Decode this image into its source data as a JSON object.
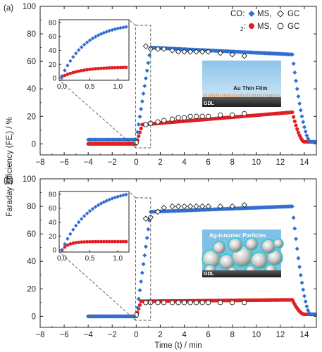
{
  "figure": {
    "ylabel": "Faraday Efficiency (FE",
    "ylabel_sub": "i",
    "ylabel_tail": ") / %",
    "xlabel": "Time (t) / min",
    "legend": {
      "co_label": "CO:",
      "h2_label": "H",
      "h2_sub": "2",
      "h2_colon": ":",
      "ms": "MS,",
      "gc": "GC"
    },
    "colors": {
      "co": "#2f6fd0",
      "h2": "#e01f22",
      "axis": "#222222"
    }
  },
  "chart_data": [
    {
      "type": "scatter",
      "panel_label": "(a)",
      "xlim": [
        -8,
        15
      ],
      "ylim": [
        -8,
        100
      ],
      "xticks": [
        -8,
        -6,
        -4,
        -2,
        0,
        2,
        4,
        6,
        8,
        10,
        12,
        14
      ],
      "yticks": [
        0,
        20,
        40,
        60,
        80,
        100
      ],
      "ms": {
        "co": {
          "t_on": -4,
          "t_rise": 0,
          "rise_end": 1.2,
          "plateau_start": 70,
          "t_peak": 1.2,
          "end_value": 65,
          "t_stop": 13.0,
          "decay_end": 14.5,
          "baseline": 3
        },
        "h2": {
          "t_on": -4,
          "t_rise": 0,
          "rise_end": 0.5,
          "plateau_start": 14,
          "t_peak": 0.5,
          "end_value": 23,
          "t_stop": 13.0,
          "decay_end": 14.0,
          "baseline": 0
        }
      },
      "gc": {
        "co": {
          "x": [
            0.8,
            1.2,
            1.8,
            2.3,
            3.0,
            3.5,
            4.0,
            4.5,
            5.0,
            5.5,
            6.0,
            7.0,
            8.0,
            9.0
          ],
          "y": [
            71,
            69,
            69,
            69,
            68,
            67,
            67,
            67,
            67,
            67,
            67,
            66,
            65,
            64
          ]
        },
        "h2": {
          "x": [
            0.8,
            1.2,
            1.8,
            2.3,
            3.0,
            3.5,
            4.0,
            4.5,
            5.0,
            5.5,
            6.0,
            7.0,
            8.0,
            9.0,
            0.0
          ],
          "y": [
            14,
            15,
            16,
            17,
            18,
            19,
            19,
            20,
            20,
            20,
            20,
            21,
            21,
            22,
            1
          ]
        }
      },
      "inset": {
        "xlim": [
          -0.05,
          1.2
        ],
        "ylim": [
          -3,
          84
        ],
        "xticks": [
          0.0,
          0.5,
          1.0
        ],
        "xtick_labels": [
          "0,0",
          "0,5",
          "1,0"
        ],
        "yticks": [
          0,
          20,
          40,
          60,
          80
        ],
        "co": {
          "start": 3,
          "end": 74,
          "tau": 0.45
        },
        "h2": {
          "start": 2,
          "end": 16,
          "tau": 0.35
        }
      },
      "image_label": "Au Thin Film",
      "substrate_label": "GDL",
      "legend_visible": true
    },
    {
      "type": "scatter",
      "panel_label": "(b)",
      "xlim": [
        -8,
        15
      ],
      "ylim": [
        -8,
        100
      ],
      "xticks": [
        -8,
        -6,
        -4,
        -2,
        0,
        2,
        4,
        6,
        8,
        10,
        12,
        14
      ],
      "yticks": [
        0,
        20,
        40,
        60,
        80,
        100
      ],
      "ms": {
        "co": {
          "t_on": -4,
          "t_rise": 0,
          "rise_end": 1.2,
          "plateau_start": 76,
          "t_peak": 1.2,
          "end_value": 80,
          "t_stop": 13.0,
          "decay_end": 14.5,
          "baseline": 0
        },
        "h2": {
          "t_on": -4,
          "t_rise": 0,
          "rise_end": 0.4,
          "plateau_start": 11,
          "t_peak": 0.4,
          "end_value": 12,
          "t_stop": 13.0,
          "decay_end": 14.0,
          "baseline": 0
        }
      },
      "gc": {
        "co": {
          "x": [
            0.8,
            1.2,
            1.8,
            2.3,
            3.0,
            3.5,
            4.0,
            4.5,
            5.0,
            5.5,
            6.0,
            7.0,
            8.0,
            9.0
          ],
          "y": [
            71,
            72,
            76,
            79,
            80,
            80,
            80,
            80,
            80,
            80,
            80,
            80,
            80,
            81
          ]
        },
        "h2": {
          "x": [
            0.8,
            1.2,
            1.8,
            2.3,
            3.0,
            3.5,
            4.0,
            4.5,
            5.0,
            5.5,
            6.0,
            7.0,
            8.0,
            9.0,
            0.0
          ],
          "y": [
            10,
            10,
            10,
            10,
            10,
            10,
            10,
            10,
            10,
            10,
            10,
            10,
            10,
            10,
            1
          ]
        }
      },
      "inset": {
        "xlim": [
          -0.05,
          1.2
        ],
        "ylim": [
          -3,
          84
        ],
        "xticks": [
          0.0,
          0.5,
          1.0
        ],
        "xtick_labels": [
          "0,0",
          "0,5",
          "1,0"
        ],
        "yticks": [
          0,
          20,
          40,
          60,
          80
        ],
        "co": {
          "start": 0,
          "end": 80,
          "tau": 0.5
        },
        "h2": {
          "start": 0,
          "end": 12,
          "tau": 0.12
        }
      },
      "image_label": "Ag-ionomer Particles",
      "substrate_label": "GDL",
      "legend_visible": false
    }
  ]
}
